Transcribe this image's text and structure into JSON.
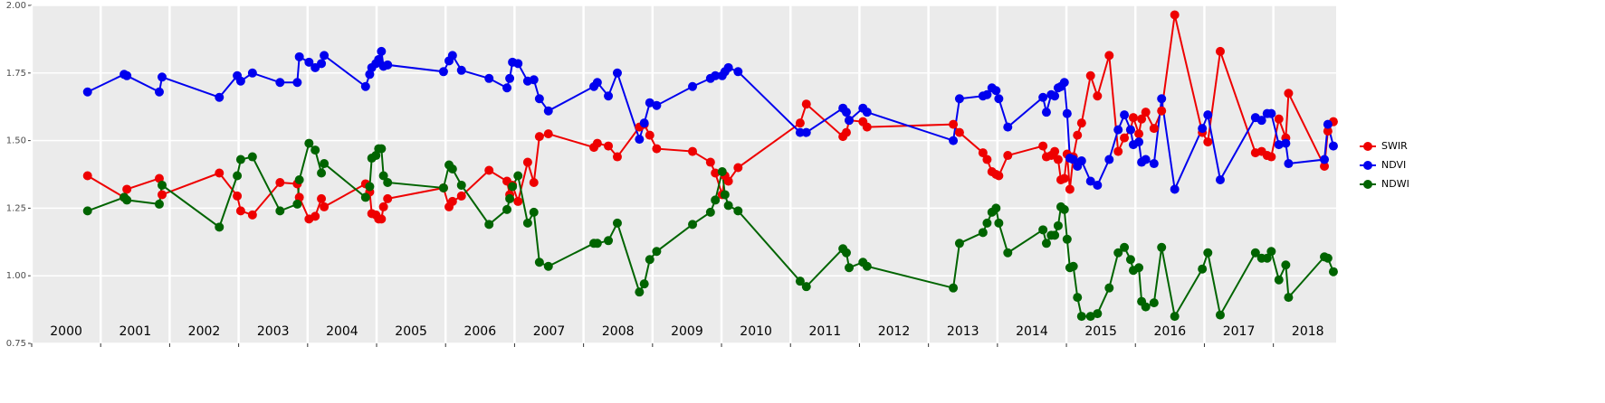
{
  "chart_data": {
    "type": "line",
    "x": [
      2000.81,
      2001.34,
      2001.38,
      2001.85,
      2001.89,
      2002.72,
      2002.98,
      2003.03,
      2003.2,
      2003.6,
      2003.85,
      2003.88,
      2004.02,
      2004.11,
      2004.2,
      2004.24,
      2004.84,
      2004.9,
      2004.93,
      2004.99,
      2005.03,
      2005.07,
      2005.1,
      2005.16,
      2005.97,
      2006.05,
      2006.1,
      2006.23,
      2006.63,
      2006.89,
      2006.93,
      2006.97,
      2007.05,
      2007.19,
      2007.28,
      2007.36,
      2007.49,
      2008.15,
      2008.2,
      2008.36,
      2008.49,
      2008.81,
      2008.88,
      2008.96,
      2009.06,
      2009.58,
      2009.84,
      2009.91,
      2010.01,
      2010.05,
      2010.1,
      2010.24,
      2011.14,
      2011.23,
      2011.76,
      2011.81,
      2011.85,
      2012.05,
      2012.11,
      2013.36,
      2013.45,
      2013.79,
      2013.85,
      2013.92,
      2013.98,
      2014.02,
      2014.15,
      2014.66,
      2014.71,
      2014.78,
      2014.83,
      2014.88,
      2014.92,
      2014.97,
      2015.01,
      2015.05,
      2015.1,
      2015.16,
      2015.22,
      2015.35,
      2015.45,
      2015.62,
      2015.75,
      2015.84,
      2015.93,
      2015.97,
      2016.05,
      2016.09,
      2016.15,
      2016.27,
      2016.38,
      2016.57,
      2016.97,
      2017.05,
      2017.23,
      2017.74,
      2017.83,
      2017.91,
      2017.97,
      2018.08,
      2018.18,
      2018.22,
      2018.74,
      2018.79,
      2018.87
    ],
    "series": [
      {
        "name": "SWIR",
        "color": "#ee0000",
        "values": [
          1.37,
          1.29,
          1.32,
          1.36,
          1.3,
          1.38,
          1.295,
          1.24,
          1.225,
          1.345,
          1.34,
          1.29,
          1.21,
          1.22,
          1.285,
          1.255,
          1.34,
          1.31,
          1.23,
          1.225,
          1.21,
          1.21,
          1.255,
          1.285,
          1.325,
          1.255,
          1.275,
          1.295,
          1.39,
          1.35,
          1.3,
          1.335,
          1.275,
          1.42,
          1.345,
          1.515,
          1.525,
          1.475,
          1.49,
          1.48,
          1.44,
          1.55,
          1.56,
          1.52,
          1.47,
          1.46,
          1.42,
          1.38,
          1.3,
          1.37,
          1.35,
          1.4,
          1.565,
          1.635,
          1.515,
          1.53,
          1.575,
          1.57,
          1.55,
          1.56,
          1.53,
          1.455,
          1.43,
          1.385,
          1.375,
          1.37,
          1.445,
          1.48,
          1.44,
          1.445,
          1.46,
          1.43,
          1.355,
          1.36,
          1.45,
          1.32,
          1.44,
          1.52,
          1.565,
          1.74,
          1.665,
          1.815,
          1.46,
          1.51,
          1.54,
          1.585,
          1.525,
          1.58,
          1.605,
          1.545,
          1.61,
          1.965,
          1.53,
          1.495,
          1.83,
          1.455,
          1.46,
          1.445,
          1.44,
          1.58,
          1.51,
          1.675,
          1.405,
          1.535,
          1.57
        ]
      },
      {
        "name": "NDVI",
        "color": "#0000ee",
        "values": [
          1.68,
          1.745,
          1.74,
          1.68,
          1.735,
          1.66,
          1.74,
          1.72,
          1.75,
          1.715,
          1.715,
          1.81,
          1.79,
          1.77,
          1.785,
          1.815,
          1.7,
          1.745,
          1.77,
          1.785,
          1.8,
          1.83,
          1.775,
          1.78,
          1.755,
          1.795,
          1.815,
          1.76,
          1.73,
          1.695,
          1.73,
          1.79,
          1.785,
          1.72,
          1.725,
          1.655,
          1.61,
          1.7,
          1.715,
          1.665,
          1.75,
          1.505,
          1.565,
          1.64,
          1.63,
          1.7,
          1.73,
          1.74,
          1.74,
          1.755,
          1.77,
          1.755,
          1.53,
          1.53,
          1.62,
          1.605,
          1.575,
          1.62,
          1.605,
          1.5,
          1.655,
          1.665,
          1.67,
          1.695,
          1.685,
          1.655,
          1.55,
          1.66,
          1.605,
          1.67,
          1.665,
          1.695,
          1.7,
          1.715,
          1.6,
          1.435,
          1.43,
          1.405,
          1.425,
          1.35,
          1.335,
          1.43,
          1.54,
          1.595,
          1.54,
          1.485,
          1.495,
          1.42,
          1.43,
          1.415,
          1.655,
          1.32,
          1.545,
          1.595,
          1.355,
          1.585,
          1.575,
          1.6,
          1.6,
          1.485,
          1.49,
          1.415,
          1.43,
          1.56,
          1.48
        ]
      },
      {
        "name": "NDWI",
        "color": "#006400",
        "values": [
          1.24,
          1.29,
          1.28,
          1.265,
          1.335,
          1.18,
          1.37,
          1.43,
          1.44,
          1.24,
          1.265,
          1.355,
          1.49,
          1.465,
          1.38,
          1.415,
          1.29,
          1.33,
          1.435,
          1.445,
          1.47,
          1.47,
          1.37,
          1.345,
          1.325,
          1.41,
          1.395,
          1.335,
          1.19,
          1.245,
          1.285,
          1.33,
          1.37,
          1.195,
          1.235,
          1.05,
          1.035,
          1.12,
          1.12,
          1.13,
          1.195,
          0.94,
          0.97,
          1.06,
          1.09,
          1.19,
          1.235,
          1.28,
          1.385,
          1.3,
          1.26,
          1.24,
          0.98,
          0.96,
          1.1,
          1.085,
          1.03,
          1.05,
          1.035,
          0.955,
          1.12,
          1.16,
          1.195,
          1.235,
          1.25,
          1.195,
          1.085,
          1.17,
          1.12,
          1.15,
          1.15,
          1.185,
          1.255,
          1.245,
          1.135,
          1.03,
          1.035,
          0.92,
          0.85,
          0.85,
          0.86,
          0.955,
          1.085,
          1.105,
          1.06,
          1.02,
          1.03,
          0.905,
          0.885,
          0.9,
          1.105,
          0.85,
          1.025,
          1.085,
          0.855,
          1.085,
          1.065,
          1.065,
          1.09,
          0.985,
          1.04,
          0.92,
          1.07,
          1.065,
          1.015
        ]
      }
    ],
    "xlim": [
      2000,
      2018.91
    ],
    "xticks": [
      2000,
      2001,
      2002,
      2003,
      2004,
      2005,
      2006,
      2007,
      2008,
      2009,
      2010,
      2011,
      2012,
      2013,
      2014,
      2015,
      2016,
      2017,
      2018
    ],
    "ylim": [
      0.75,
      2
    ],
    "yticks": [
      {
        "value": 0.75,
        "label": "0.75"
      },
      {
        "value": 1,
        "label": "1.00"
      },
      {
        "value": 1.25,
        "label": "1.25"
      },
      {
        "value": 1.5,
        "label": "1.50"
      },
      {
        "value": 1.75,
        "label": "1.75"
      },
      {
        "value": 2,
        "label": "2.00"
      }
    ],
    "grid": true,
    "legend": "right"
  }
}
